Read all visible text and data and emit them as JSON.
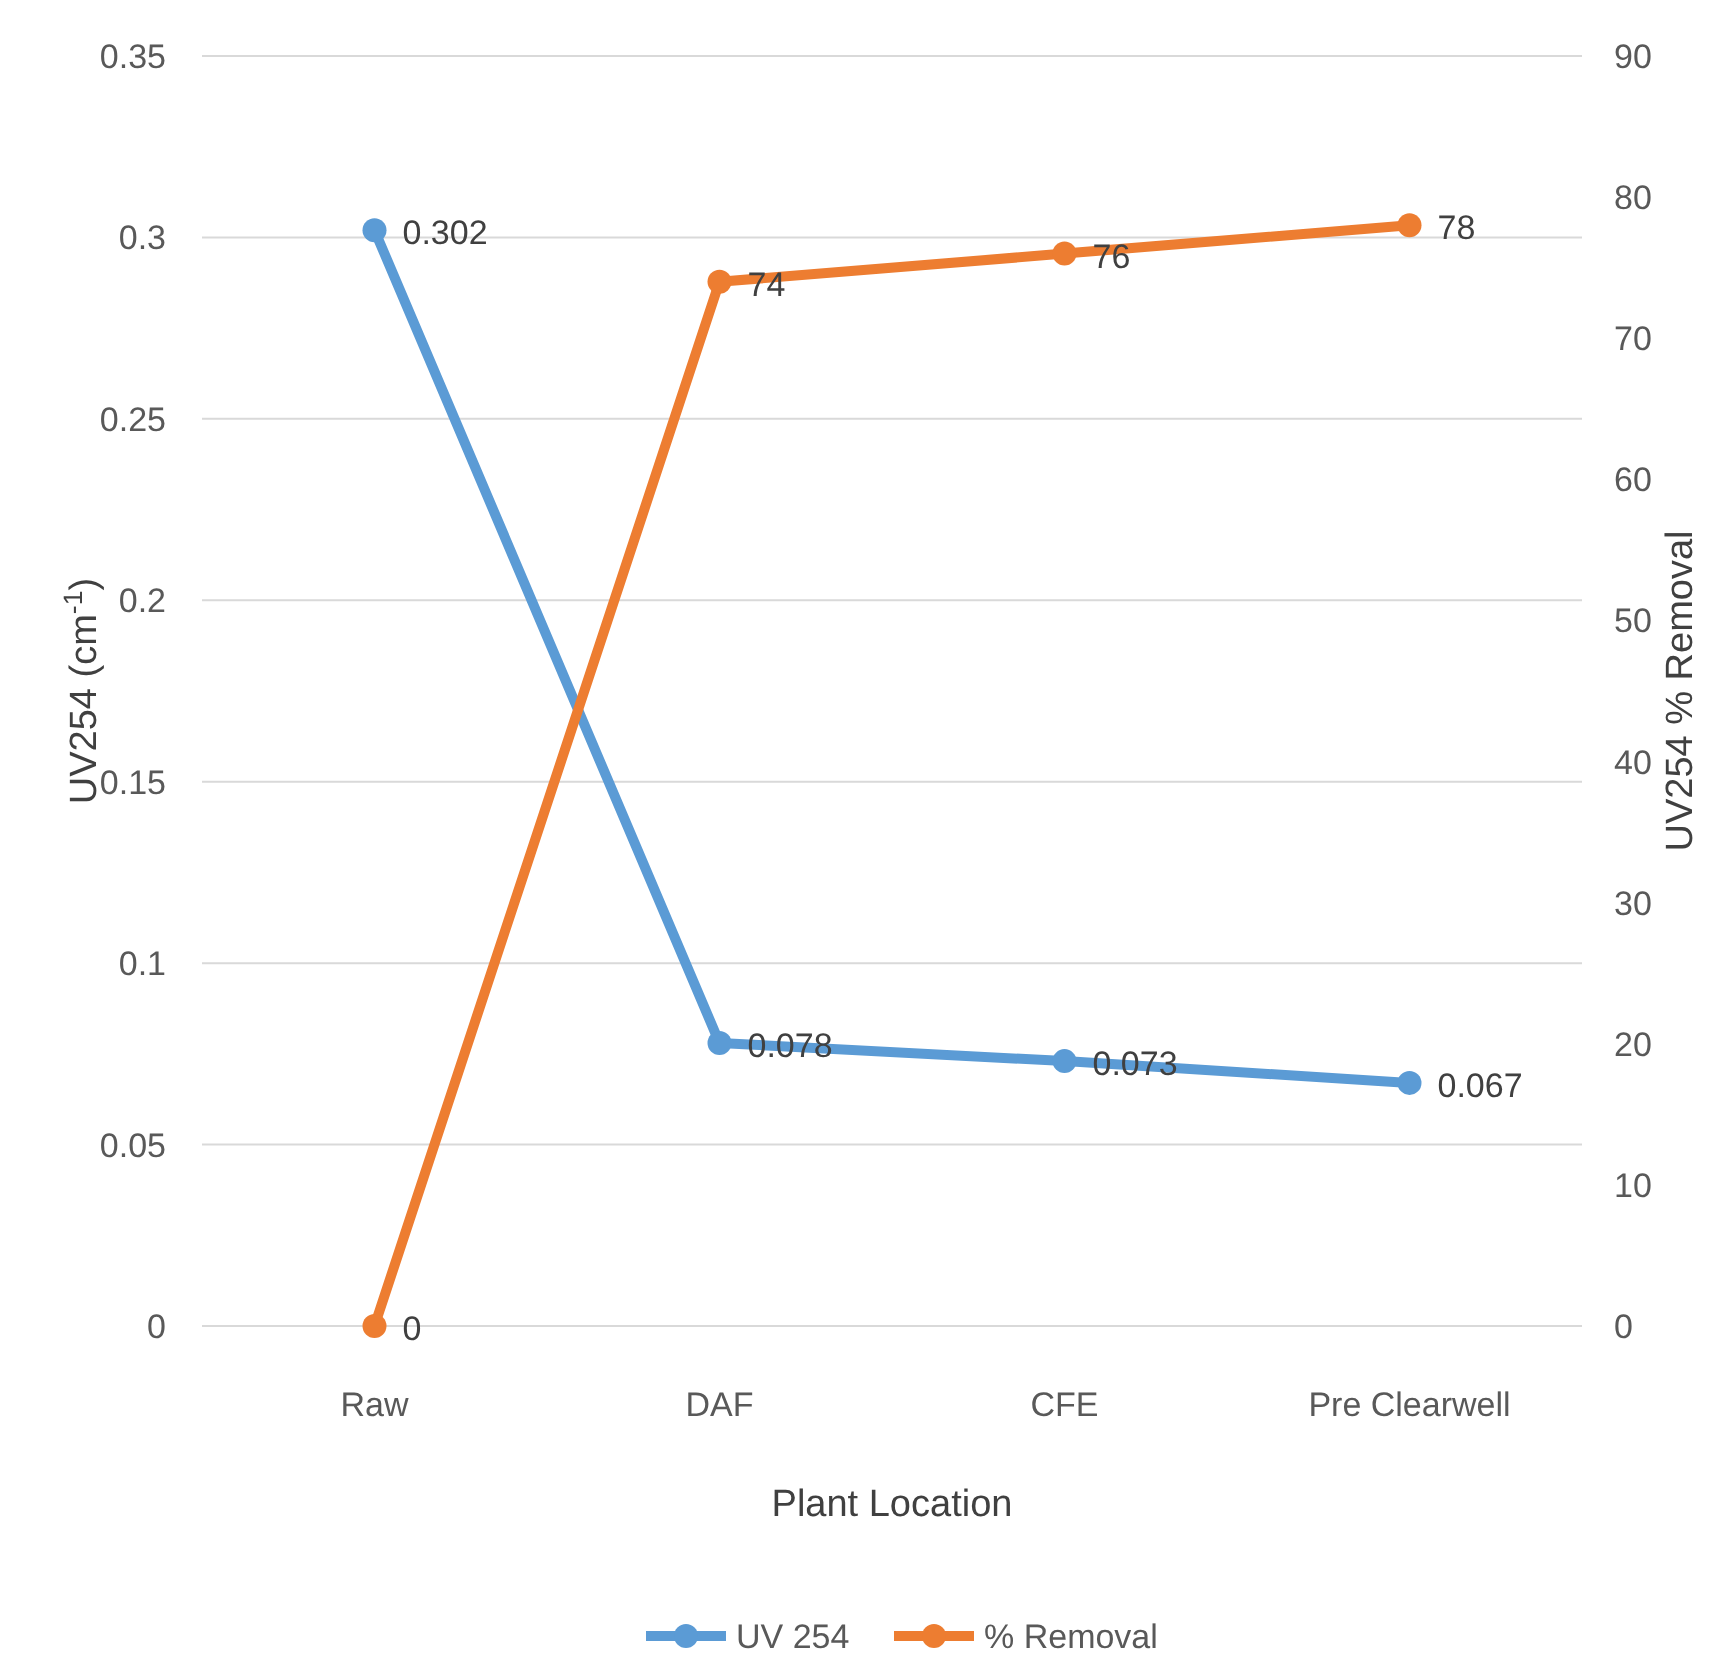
{
  "chart_data": {
    "type": "line",
    "xlabel": "Plant Location",
    "ylabel": "UV254 (cm$^{-1}$)",
    "y2label": "UV254 % Removal",
    "categories": [
      "Raw",
      "DAF",
      "CFE",
      "Pre Clearwell"
    ],
    "series": [
      {
        "name": "UV 254",
        "color": "#5b9bd5",
        "values": [
          0.302,
          0.078,
          0.073,
          0.067
        ]
      },
      {
        "name": "% Removal",
        "color": "#ed7d31",
        "values": [
          0,
          74,
          76,
          78
        ],
        "axis": "y2"
      }
    ],
    "ylim": [
      0,
      0.35
    ],
    "yticks": [
      0,
      0.05,
      0.1,
      0.15,
      0.2,
      0.25,
      0.3,
      0.35
    ],
    "y2lim": [
      0,
      90
    ],
    "y2ticks": [
      0,
      10,
      20,
      30,
      40,
      50,
      60,
      70,
      80,
      90
    ],
    "grid": "y",
    "legend": "bottom",
    "marker": "circle",
    "line_style": "solid",
    "data_labels": true
  }
}
